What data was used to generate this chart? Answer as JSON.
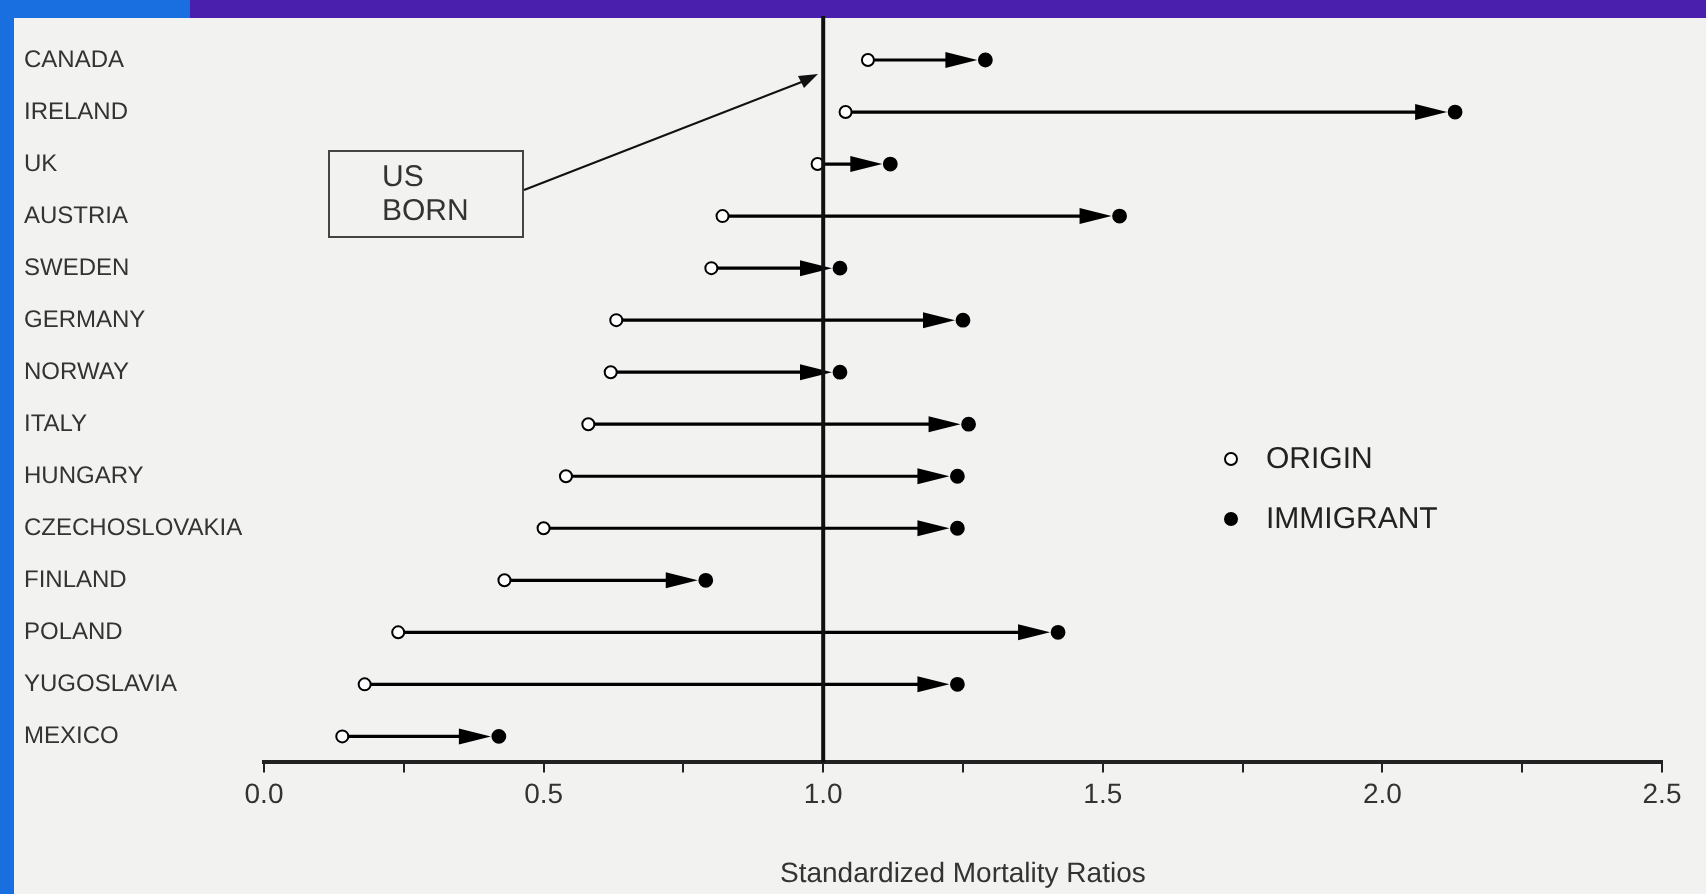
{
  "chart_data": {
    "type": "scatter",
    "orientation": "horizontal",
    "xlabel": "Standardized Mortality Ratios",
    "categories": [
      "CANADA",
      "IRELAND",
      "UK",
      "AUSTRIA",
      "SWEDEN",
      "GERMANY",
      "NORWAY",
      "ITALY",
      "HUNGARY",
      "CZECHOSLOVAKIA",
      "FINLAND",
      "POLAND",
      "YUGOSLAVIA",
      "MEXICO"
    ],
    "series": [
      {
        "name": "ORIGIN",
        "color": "#000000",
        "marker": "circle",
        "values": [
          1.08,
          1.04,
          0.99,
          0.82,
          0.8,
          0.63,
          0.62,
          0.58,
          0.54,
          0.5,
          0.43,
          0.24,
          0.18,
          0.14
        ]
      },
      {
        "name": "IMMIGRANT",
        "color": "#000000",
        "marker": "circle",
        "values": [
          1.29,
          2.13,
          1.12,
          1.53,
          1.03,
          1.25,
          1.03,
          1.26,
          1.24,
          1.24,
          0.79,
          1.42,
          1.24,
          0.42
        ]
      }
    ],
    "xlim": [
      0,
      2.5
    ],
    "xticks": [
      {
        "value": 0,
        "label": "0.0"
      },
      {
        "value": 0.25,
        "label": null
      },
      {
        "value": 0.5,
        "label": "0.5"
      },
      {
        "value": 0.75,
        "label": null
      },
      {
        "value": 1,
        "label": "1.0"
      },
      {
        "value": 1.25,
        "label": null
      },
      {
        "value": 1.5,
        "label": "1.5"
      },
      {
        "value": 1.75,
        "label": null
      },
      {
        "value": 2,
        "label": "2.0"
      },
      {
        "value": 2.25,
        "label": null
      },
      {
        "value": 2.5,
        "label": "2.5"
      }
    ],
    "ref_lines": [
      {
        "axis": "x",
        "value": 1
      }
    ],
    "annotations": [
      "US BORN"
    ],
    "grid": false,
    "legend": "right"
  }
}
